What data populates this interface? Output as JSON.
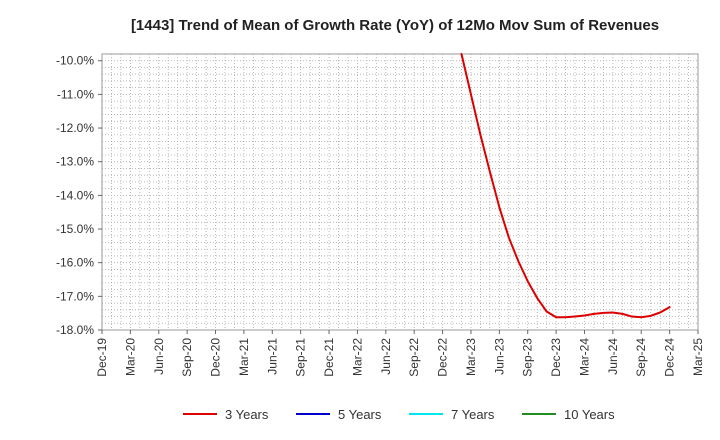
{
  "chart_data": {
    "type": "line",
    "title": "[1443]  Trend of Mean of Growth Rate (YoY) of 12Mo Mov Sum of Revenues",
    "xlabel": "",
    "ylabel": "",
    "ylim": [
      -18.0,
      -9.8
    ],
    "y_ticks": [
      -10.0,
      -11.0,
      -12.0,
      -13.0,
      -14.0,
      -15.0,
      -16.0,
      -17.0,
      -18.0
    ],
    "y_tick_labels": [
      "-10.0%",
      "-11.0%",
      "-12.0%",
      "-13.0%",
      "-14.0%",
      "-15.0%",
      "-16.0%",
      "-17.0%",
      "-18.0%"
    ],
    "x_tick_labels": [
      "Dec-19",
      "Mar-20",
      "Jun-20",
      "Sep-20",
      "Dec-20",
      "Mar-21",
      "Jun-21",
      "Sep-21",
      "Dec-21",
      "Mar-22",
      "Jun-22",
      "Sep-22",
      "Dec-22",
      "Mar-23",
      "Jun-23",
      "Sep-23",
      "Dec-23",
      "Mar-24",
      "Jun-24",
      "Sep-24",
      "Dec-24",
      "Mar-25"
    ],
    "grid": true,
    "legend_position": "bottom",
    "series": [
      {
        "name": "3 Years",
        "color": "#dd0000",
        "x": [
          38,
          39,
          40,
          41,
          42,
          43,
          44,
          45,
          46,
          47,
          48,
          49,
          50,
          51,
          52,
          53,
          54,
          55,
          56,
          57,
          58,
          59,
          60
        ],
        "values": [
          -9.8,
          -11.0,
          -12.2,
          -13.3,
          -14.35,
          -15.25,
          -15.95,
          -16.55,
          -17.05,
          -17.45,
          -17.62,
          -17.62,
          -17.6,
          -17.57,
          -17.52,
          -17.49,
          -17.48,
          -17.52,
          -17.6,
          -17.62,
          -17.58,
          -17.48,
          -17.32
        ]
      },
      {
        "name": "5 Years",
        "color": "#0000cc",
        "x": [],
        "values": []
      },
      {
        "name": "7 Years",
        "color": "#00e5ee",
        "x": [],
        "values": []
      },
      {
        "name": "10 Years",
        "color": "#228b22",
        "x": [],
        "values": []
      }
    ]
  }
}
